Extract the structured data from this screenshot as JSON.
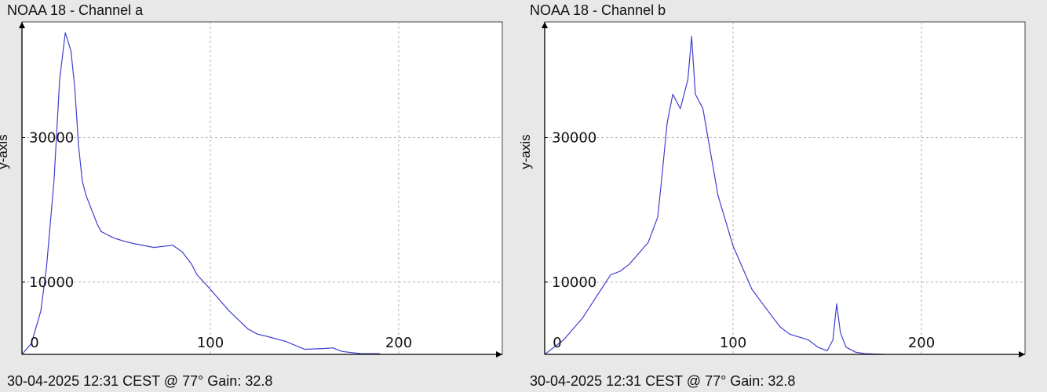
{
  "theme": {
    "background": "#e8e8e8",
    "plot_bg": "#ffffff",
    "line": "#3f3fcf",
    "grid": "#b4b4b4",
    "axis": "#000000"
  },
  "panels": [
    {
      "title": "NOAA 18 - Channel a",
      "ylabel": "y-axis",
      "footer": "30-04-2025 12:31 CEST @ 77° Gain: 32.8"
    },
    {
      "title": "NOAA 18 - Channel b",
      "ylabel": "y-axis",
      "footer": "30-04-2025 12:31 CEST @ 77° Gain: 32.8"
    }
  ],
  "chart_data": [
    {
      "type": "line",
      "title": "NOAA 18 - Channel a",
      "xlabel": "",
      "ylabel": "y-axis",
      "xlim": [
        0,
        255
      ],
      "ylim": [
        0,
        46000
      ],
      "x_ticks": [
        0,
        100,
        200
      ],
      "y_ticks": [
        10000,
        30000
      ],
      "grid": true,
      "series": [
        {
          "x": [
            0,
            5,
            10,
            13,
            17,
            20,
            23,
            26,
            28,
            30,
            32,
            34,
            37,
            40,
            42,
            45,
            48,
            50,
            55,
            60,
            70,
            80,
            85,
            90,
            93,
            100,
            110,
            120,
            125,
            130,
            140,
            150,
            160,
            165,
            170,
            180,
            190
          ],
          "y": [
            0,
            1500,
            6000,
            12000,
            24000,
            38000,
            44500,
            42000,
            37000,
            29000,
            24000,
            22000,
            20000,
            18000,
            17000,
            16600,
            16200,
            16000,
            15600,
            15300,
            14800,
            15100,
            14200,
            12500,
            11000,
            9000,
            6000,
            3500,
            2800,
            2500,
            1800,
            700,
            800,
            900,
            400,
            100,
            100
          ]
        }
      ]
    },
    {
      "type": "line",
      "title": "NOAA 18 - Channel b",
      "xlabel": "",
      "ylabel": "y-axis",
      "xlim": [
        0,
        255
      ],
      "ylim": [
        0,
        46000
      ],
      "x_ticks": [
        0,
        100,
        200
      ],
      "y_ticks": [
        10000,
        30000
      ],
      "grid": true,
      "series": [
        {
          "x": [
            0,
            5,
            10,
            20,
            30,
            35,
            40,
            45,
            50,
            55,
            60,
            62,
            65,
            68,
            72,
            76,
            78,
            80,
            84,
            88,
            92,
            100,
            110,
            120,
            125,
            130,
            140,
            145,
            150,
            153,
            155,
            157,
            160,
            165,
            170,
            180
          ],
          "y": [
            0,
            1000,
            2000,
            5000,
            9000,
            11000,
            11500,
            12500,
            14000,
            15500,
            19000,
            24000,
            32000,
            36000,
            34000,
            38000,
            44000,
            36000,
            34000,
            28000,
            22000,
            15000,
            9000,
            5500,
            3800,
            2800,
            2000,
            1000,
            500,
            2000,
            7000,
            3000,
            1000,
            300,
            100,
            0
          ]
        }
      ]
    }
  ]
}
